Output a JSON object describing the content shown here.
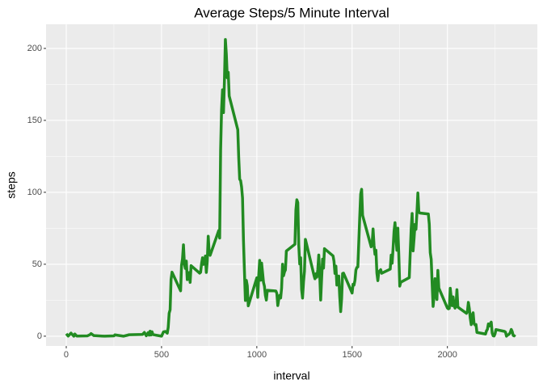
{
  "chart_data": {
    "type": "line",
    "title": "Average Steps/5 Minute Interval",
    "x_label": "interval",
    "y_label": "steps",
    "color": "#228b22",
    "x": [
      0,
      10,
      25,
      40,
      45,
      55,
      110,
      125,
      130,
      145,
      200,
      250,
      255,
      300,
      330,
      400,
      410,
      420,
      430,
      435,
      440,
      445,
      450,
      455,
      500,
      510,
      520,
      530,
      535,
      540,
      545,
      550,
      555,
      600,
      605,
      610,
      615,
      620,
      625,
      630,
      635,
      640,
      645,
      650,
      655,
      700,
      705,
      710,
      715,
      720,
      725,
      730,
      735,
      740,
      745,
      750,
      755,
      800,
      805,
      810,
      815,
      820,
      825,
      830,
      835,
      840,
      845,
      850,
      855,
      900,
      905,
      910,
      915,
      920,
      925,
      930,
      935,
      940,
      945,
      950,
      955,
      1000,
      1005,
      1010,
      1015,
      1020,
      1025,
      1030,
      1035,
      1040,
      1045,
      1050,
      1055,
      1100,
      1105,
      1110,
      1115,
      1120,
      1125,
      1130,
      1135,
      1140,
      1145,
      1150,
      1155,
      1200,
      1205,
      1210,
      1215,
      1220,
      1225,
      1230,
      1235,
      1240,
      1245,
      1250,
      1255,
      1300,
      1305,
      1310,
      1315,
      1320,
      1325,
      1330,
      1335,
      1340,
      1345,
      1350,
      1355,
      1400,
      1405,
      1410,
      1415,
      1420,
      1425,
      1430,
      1435,
      1440,
      1445,
      1450,
      1455,
      1500,
      1505,
      1510,
      1515,
      1520,
      1525,
      1530,
      1535,
      1540,
      1545,
      1550,
      1555,
      1600,
      1605,
      1610,
      1615,
      1620,
      1625,
      1630,
      1635,
      1640,
      1645,
      1650,
      1655,
      1700,
      1705,
      1710,
      1715,
      1720,
      1725,
      1730,
      1735,
      1740,
      1745,
      1750,
      1755,
      1800,
      1805,
      1810,
      1815,
      1820,
      1825,
      1830,
      1835,
      1840,
      1845,
      1850,
      1855,
      1900,
      1905,
      1910,
      1915,
      1920,
      1925,
      1930,
      1935,
      1940,
      1945,
      1950,
      1955,
      2000,
      2005,
      2010,
      2015,
      2020,
      2025,
      2030,
      2035,
      2040,
      2045,
      2050,
      2055,
      2100,
      2105,
      2110,
      2115,
      2120,
      2125,
      2130,
      2135,
      2140,
      2145,
      2150,
      2155,
      2200,
      2205,
      2210,
      2215,
      2220,
      2225,
      2230,
      2235,
      2240,
      2245,
      2250,
      2255,
      2300,
      2305,
      2310,
      2315,
      2320,
      2325,
      2330,
      2335,
      2340,
      2345,
      2350,
      2355
    ],
    "values": [
      1.7,
      0.1,
      2.1,
      0,
      1.5,
      0.1,
      0.2,
      1.1,
      1.8,
      0.4,
      0,
      0.2,
      0.9,
      0,
      1.0,
      1.2,
      2.6,
      0.3,
      2.5,
      0.7,
      3.5,
      0.8,
      3.1,
      1.1,
      0,
      3.0,
      3.3,
      2.1,
      6.1,
      16.0,
      18.3,
      39.5,
      44.5,
      31.5,
      49.3,
      53.8,
      63.5,
      50.0,
      47.1,
      52.2,
      39.3,
      44.0,
      44.2,
      37.4,
      49.0,
      43.8,
      44.4,
      50.5,
      54.5,
      49.9,
      51.0,
      55.7,
      44.3,
      52.3,
      69.5,
      57.8,
      56.2,
      73.4,
      68.2,
      129.4,
      157.5,
      171.2,
      155.4,
      177.3,
      206.2,
      195.9,
      179.6,
      183.4,
      167.0,
      143.5,
      124.0,
      109.1,
      108.1,
      103.7,
      96.0,
      66.2,
      45.2,
      24.8,
      38.8,
      35.0,
      21.1,
      40.6,
      27.0,
      42.4,
      52.7,
      38.9,
      50.8,
      44.3,
      37.4,
      34.7,
      28.3,
      25.1,
      31.9,
      31.4,
      29.7,
      21.3,
      25.5,
      28.4,
      26.5,
      33.4,
      50.0,
      42.0,
      44.6,
      46.0,
      59.2,
      63.9,
      87.7,
      94.8,
      92.8,
      63.4,
      50.2,
      54.5,
      32.4,
      26.5,
      37.7,
      45.1,
      67.3,
      42.3,
      39.9,
      43.3,
      41.0,
      46.2,
      56.4,
      42.8,
      25.1,
      40.0,
      53.5,
      47.3,
      60.8,
      55.8,
      52.0,
      43.6,
      48.7,
      35.5,
      37.5,
      41.8,
      27.5,
      17.1,
      26.1,
      43.6,
      43.8,
      30.0,
      36.1,
      35.5,
      38.8,
      46.0,
      47.8,
      48.1,
      65.3,
      82.9,
      98.7,
      102.1,
      84.0,
      62.1,
      64.1,
      74.5,
      63.2,
      56.9,
      59.8,
      43.9,
      38.6,
      44.7,
      45.5,
      46.2,
      43.7,
      46.6,
      56.3,
      50.7,
      61.2,
      72.7,
      78.9,
      68.9,
      59.7,
      75.1,
      56.5,
      34.8,
      37.5,
      40.7,
      58.0,
      74.7,
      85.3,
      59.3,
      67.8,
      77.7,
      74.2,
      85.3,
      99.5,
      86.6,
      85.6,
      84.9,
      77.8,
      58.0,
      53.4,
      36.3,
      20.7,
      27.4,
      40.0,
      30.2,
      25.5,
      45.7,
      33.5,
      19.6,
      19.0,
      19.3,
      33.3,
      26.8,
      21.2,
      27.3,
      21.3,
      19.5,
      21.3,
      32.3,
      20.2,
      15.9,
      17.2,
      23.5,
      19.2,
      12.5,
      8.0,
      14.7,
      16.3,
      8.7,
      7.8,
      8.1,
      2.6,
      1.5,
      3.7,
      4.8,
      8.5,
      7.1,
      8.7,
      9.8,
      2.2,
      0.3,
      0.1,
      1.6,
      4.6,
      3.3,
      2.8,
      0,
      0.8,
      1.0,
      1.6,
      2.6,
      4.7,
      3.3,
      0.6,
      0.2,
      1.1
    ],
    "xlim": [
      -106,
      2472
    ],
    "ylim": [
      -6.8,
      216.8
    ],
    "xticks": [
      0,
      500,
      1000,
      1500,
      2000
    ],
    "yticks": [
      0,
      50,
      100,
      150,
      200
    ],
    "x_minor_ticks": [
      250,
      750,
      1250,
      1750,
      2250
    ],
    "y_minor_ticks": [
      25,
      75,
      125,
      175
    ],
    "grid": true
  }
}
